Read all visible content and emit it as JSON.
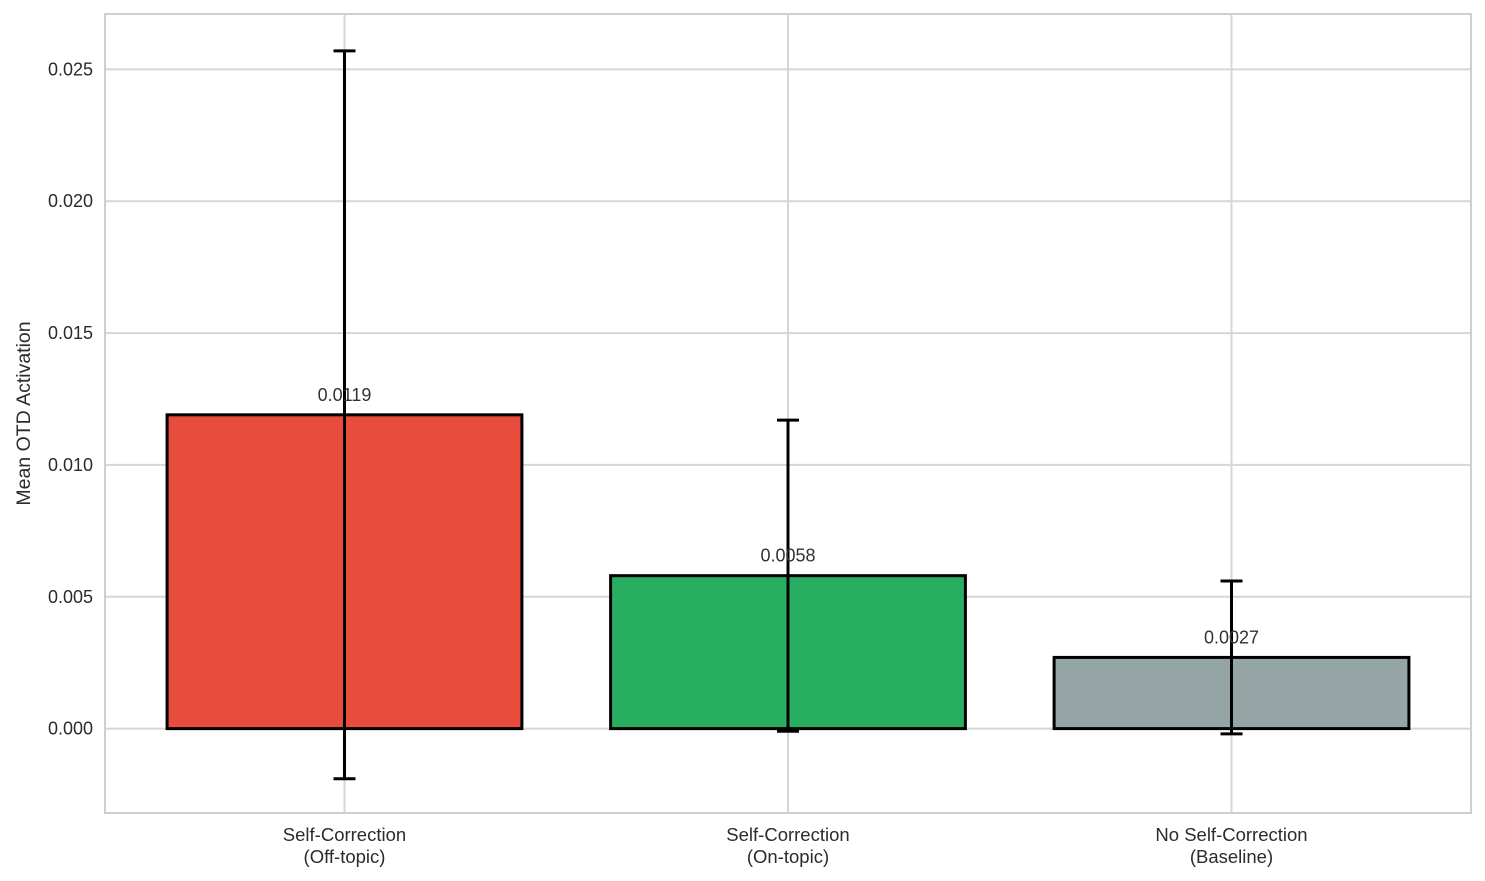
{
  "chart_data": {
    "type": "bar",
    "title": "",
    "xlabel": "",
    "ylabel": "Mean OTD Activation",
    "categories": [
      "Self-Correction\n(Off-topic)",
      "Self-Correction\n(On-topic)",
      "No Self-Correction\n(Baseline)"
    ],
    "values": [
      0.0119,
      0.0058,
      0.0027
    ],
    "errors": [
      0.0138,
      0.0059,
      0.0029
    ],
    "value_labels": [
      "0.0119",
      "0.0058",
      "0.0027"
    ],
    "bar_colors": [
      "#e74c3c",
      "#27ae60",
      "#95a5a6"
    ],
    "bar_edge_color": "#000000",
    "error_color": "#000000",
    "yticks": [
      0.0,
      0.005,
      0.01,
      0.015,
      0.02,
      0.025
    ],
    "ytick_labels": [
      "0.000",
      "0.005",
      "0.010",
      "0.015",
      "0.020",
      "0.025"
    ],
    "ylim": [
      -0.0032,
      0.0271
    ],
    "xlim": [
      -0.54,
      2.54
    ],
    "bar_width": 0.8,
    "grid": true,
    "legend": "none",
    "grid_color": "#d6d6d6",
    "spine_color": "#cfcfcf",
    "background_color": "#ffffff",
    "text_color": "#2b2b2b"
  }
}
